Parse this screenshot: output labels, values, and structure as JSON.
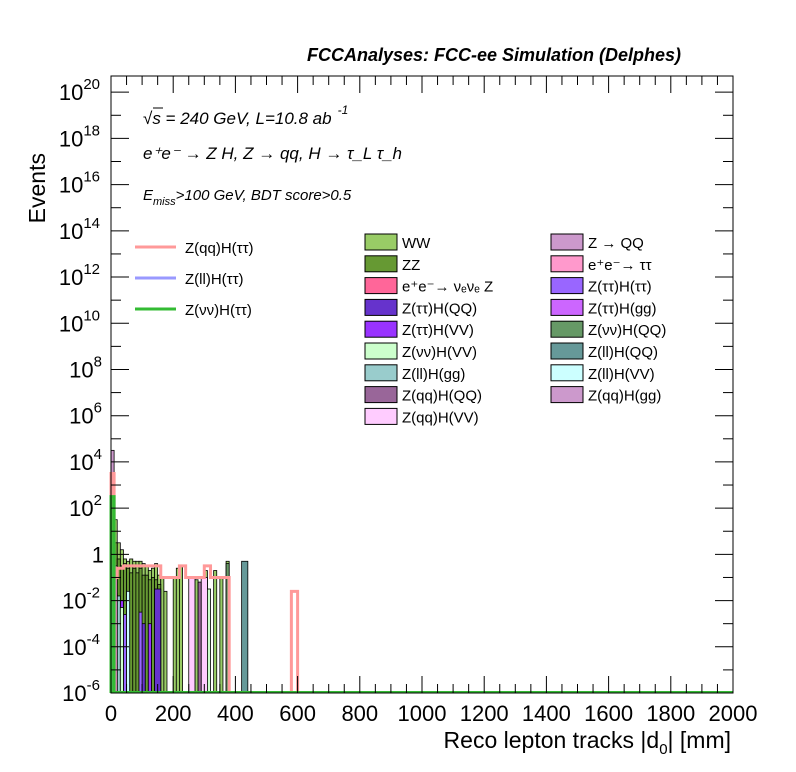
{
  "chart_data": {
    "type": "histogram",
    "title": "FCCAnalyses: FCC-ee Simulation (Delphes)",
    "xlabel": "Reco lepton tracks |d",
    "xlabel_sub": "0",
    "xlabel_tail": "| [mm]",
    "ylabel": "Events",
    "xlim": [
      0,
      2000
    ],
    "ylim_log10": [
      -6,
      20.7
    ],
    "yscale": "log",
    "x_ticks": [
      0,
      200,
      400,
      600,
      800,
      1000,
      1200,
      1400,
      1600,
      1800,
      2000
    ],
    "x_tick_labels": [
      "0",
      "200",
      "400",
      "600",
      "800",
      "1000",
      "1200",
      "1400",
      "1600",
      "1800",
      "2000"
    ],
    "y_ticks": [
      {
        "exp": 20,
        "base": "10",
        "sup": "20"
      },
      {
        "exp": 18,
        "base": "10",
        "sup": "18"
      },
      {
        "exp": 16,
        "base": "10",
        "sup": "16"
      },
      {
        "exp": 14,
        "base": "10",
        "sup": "14"
      },
      {
        "exp": 12,
        "base": "10",
        "sup": "12"
      },
      {
        "exp": 10,
        "base": "10",
        "sup": "10"
      },
      {
        "exp": 8,
        "base": "10",
        "sup": "8"
      },
      {
        "exp": 6,
        "base": "10",
        "sup": "6"
      },
      {
        "exp": 4,
        "base": "10",
        "sup": "4"
      },
      {
        "exp": 2,
        "base": "10",
        "sup": "2"
      },
      {
        "exp": 0,
        "base": "1",
        "sup": ""
      },
      {
        "exp": -2,
        "base": "10",
        "sup": "-2"
      },
      {
        "exp": -4,
        "base": "10",
        "sup": "-4"
      },
      {
        "exp": -6,
        "base": "10",
        "sup": "-6"
      }
    ],
    "annotations": {
      "energy": {
        "pre": "√s = 240 GeV, L=10.8 ab",
        "sup": "-1"
      },
      "process": "e⁺e⁻ → Z H, Z → qq, H → τ_L τ_h",
      "cut": {
        "pre": "E",
        "sub": "miss",
        "post": ">100 GeV, BDT score>0.5"
      }
    },
    "signals": [
      {
        "name": "Z(qq)H(ττ)",
        "color": "#ff9999",
        "bins": [
          [
            0,
            10,
            3.5
          ],
          [
            10,
            20,
            -1.0
          ],
          [
            20,
            30,
            -0.6
          ],
          [
            30,
            40,
            -0.6
          ],
          [
            40,
            60,
            -0.5
          ],
          [
            60,
            80,
            -0.5
          ],
          [
            80,
            100,
            -0.5
          ],
          [
            100,
            120,
            -0.5
          ],
          [
            120,
            160,
            -0.5
          ],
          [
            160,
            180,
            -1.0
          ],
          [
            180,
            200,
            -1.0
          ],
          [
            200,
            220,
            -1.0
          ],
          [
            220,
            240,
            -0.5
          ],
          [
            240,
            280,
            -1.0
          ],
          [
            280,
            300,
            -1.0
          ],
          [
            300,
            320,
            -0.5
          ],
          [
            320,
            340,
            -1.0
          ],
          [
            340,
            360,
            -1.0
          ],
          [
            360,
            380,
            -1.0
          ],
          [
            580,
            600,
            -1.6
          ]
        ]
      },
      {
        "name": "Z(ll)H(ττ)",
        "color": "#9999ff",
        "bins": [
          [
            0,
            10,
            -0.5
          ]
        ]
      },
      {
        "name": "Z(νν)H(ττ)",
        "color": "#33bb33",
        "bins": [
          [
            0,
            10,
            2.5
          ]
        ]
      }
    ],
    "backgrounds": [
      {
        "name": "WW",
        "color": "#99cc66"
      },
      {
        "name": "Z → QQ",
        "color": "#cc99cc"
      },
      {
        "name": "ZZ",
        "color": "#669933"
      },
      {
        "name": "e⁺e⁻→ ττ",
        "color": "#ff99cc"
      },
      {
        "name": "e⁺e⁻→ νₑνₑ Z",
        "color": "#ff6699"
      },
      {
        "name": "Z(ττ)H(ττ)",
        "color": "#9966ff"
      },
      {
        "name": "Z(ττ)H(QQ)",
        "color": "#6633cc"
      },
      {
        "name": "Z(ττ)H(gg)",
        "color": "#cc66ff"
      },
      {
        "name": "Z(ττ)H(VV)",
        "color": "#9933ff"
      },
      {
        "name": "Z(νν)H(QQ)",
        "color": "#669966"
      },
      {
        "name": "Z(νν)H(VV)",
        "color": "#ccffcc"
      },
      {
        "name": "Z(ll)H(QQ)",
        "color": "#669999"
      },
      {
        "name": "Z(ll)H(gg)",
        "color": "#99cccc"
      },
      {
        "name": "Z(ll)H(VV)",
        "color": "#ccffff"
      },
      {
        "name": "Z(qq)H(QQ)",
        "color": "#996699"
      },
      {
        "name": "Z(qq)H(gg)",
        "color": "#cc99cc"
      },
      {
        "name": "Z(qq)H(VV)",
        "color": "#ffccff"
      }
    ],
    "stack": {
      "WW": [
        [
          0,
          10,
          3.5
        ],
        [
          10,
          20,
          1.5
        ],
        [
          20,
          30,
          0.5
        ],
        [
          30,
          40,
          0.2
        ],
        [
          40,
          50,
          -0.2
        ],
        [
          50,
          60,
          -0.3
        ],
        [
          60,
          70,
          -0.2
        ],
        [
          70,
          80,
          -0.3
        ],
        [
          80,
          90,
          -0.3
        ],
        [
          90,
          100,
          -0.3
        ],
        [
          100,
          110,
          -0.4
        ],
        [
          110,
          120,
          -0.5
        ],
        [
          120,
          130,
          -0.7
        ],
        [
          130,
          140,
          -0.6
        ],
        [
          140,
          150,
          -0.4
        ],
        [
          150,
          160,
          -0.9
        ],
        [
          160,
          170,
          -1.0
        ],
        [
          170,
          180,
          -1.6
        ],
        [
          200,
          210,
          -1.0
        ],
        [
          210,
          220,
          -0.6
        ],
        [
          220,
          230,
          -0.5
        ],
        [
          260,
          270,
          -1.0
        ],
        [
          270,
          280,
          -1.1
        ],
        [
          300,
          310,
          -0.7
        ],
        [
          330,
          340,
          -0.7
        ],
        [
          350,
          360,
          -1.0
        ],
        [
          370,
          380,
          -0.3
        ]
      ],
      "ZZ": [
        [
          0,
          10,
          2.5
        ],
        [
          10,
          20,
          0.5
        ],
        [
          20,
          30,
          -0.2
        ],
        [
          30,
          40,
          -0.5
        ],
        [
          40,
          50,
          -0.4
        ],
        [
          50,
          60,
          -0.6
        ],
        [
          60,
          70,
          -0.8
        ],
        [
          70,
          80,
          -0.6
        ],
        [
          80,
          90,
          -0.8
        ],
        [
          90,
          100,
          -0.6
        ],
        [
          100,
          110,
          -0.9
        ],
        [
          110,
          120,
          -0.9
        ],
        [
          120,
          130,
          -1.1
        ],
        [
          130,
          140,
          -1.0
        ],
        [
          140,
          150,
          -1.1
        ],
        [
          150,
          160,
          -1.3
        ]
      ],
      "Z(ττ)H(QQ)": [
        [
          100,
          110,
          -3.0
        ],
        [
          140,
          160,
          -1.5
        ]
      ],
      "Z(ττ)H(VV)": [
        [
          30,
          40,
          -2.0
        ],
        [
          120,
          130,
          -3.0
        ]
      ],
      "Z(ττ)H(ττ)": [
        [
          10,
          20,
          -1.7
        ],
        [
          40,
          50,
          -2.6
        ],
        [
          90,
          100,
          -2.5
        ]
      ],
      "Z(ll)H(gg)": [
        [
          0,
          10,
          -1.5
        ],
        [
          20,
          30,
          -1.8
        ]
      ],
      "Z(ll)H(QQ)": [
        [
          420,
          440,
          -0.3
        ]
      ],
      "Z(qq)H(VV)": [
        [
          250,
          270,
          -1.0
        ],
        [
          290,
          310,
          -1.0
        ]
      ],
      "Z(νν)H(VV)": [
        [
          30,
          40,
          -2.3
        ],
        [
          310,
          320,
          -1.5
        ]
      ],
      "Z(νν)H(QQ)": [
        [
          370,
          380,
          -0.4
        ]
      ],
      "Z(qq)H(QQ)": [
        [
          280,
          290,
          -1.2
        ]
      ],
      "Z → QQ": [
        [
          0,
          10,
          4.5
        ]
      ],
      "Z(ll)H(VV)": [
        [
          50,
          60,
          -1.6
        ]
      ],
      "e⁺e⁻→ ττ": [
        [
          0,
          10,
          2.0
        ],
        [
          10,
          20,
          -0.5
        ]
      ]
    },
    "legend": {
      "position": "upper-right",
      "columns": 3
    }
  }
}
